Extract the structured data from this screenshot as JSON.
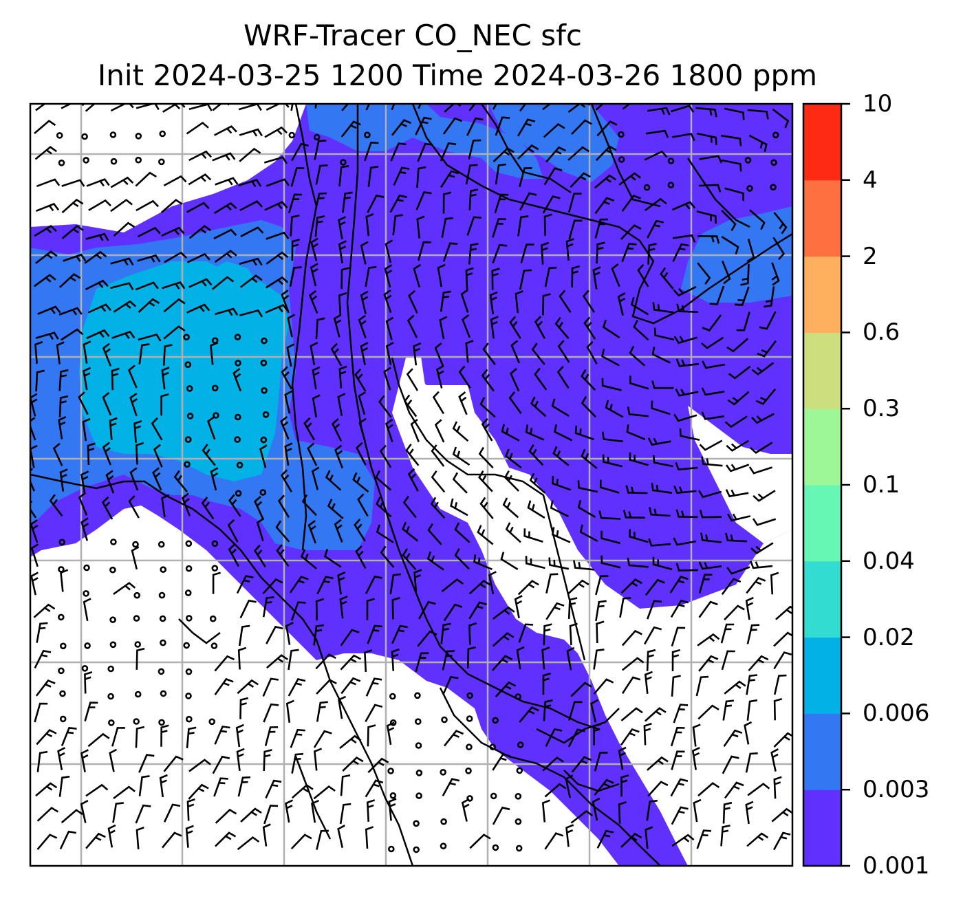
{
  "title": "WRF-Tracer CO_NEC sfc",
  "subtitle": "Init 2024-03-25 1200 Time 2024-03-26 1800 ppm",
  "colorbar": {
    "levels": [
      "0.001",
      "0.003",
      "0.006",
      "0.02",
      "0.04",
      "0.1",
      "0.3",
      "0.6",
      "2",
      "4",
      "10"
    ],
    "colors": [
      "#6030ff",
      "#3377f2",
      "#02b1e6",
      "#33dcd0",
      "#66f7b4",
      "#9df797",
      "#ccde7d",
      "#ffb05f",
      "#ff7040",
      "#ff2a14"
    ]
  },
  "map": {
    "background": "#ffffff",
    "gridline_color": "#b0b0b0",
    "wind_barbs": "black",
    "coastlines": "black"
  }
}
